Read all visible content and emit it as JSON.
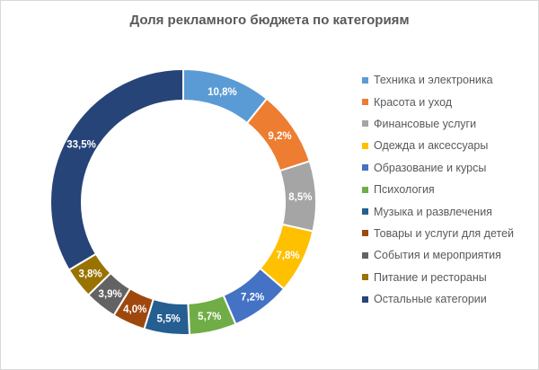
{
  "chart_data": {
    "type": "pie",
    "donut": true,
    "title": "Доля рекламного бюджета по категориям",
    "legend_position": "right",
    "categories": [
      "Техника и электроника",
      "Красота и уход",
      "Финансовые услуги",
      "Одежда и аксессуары",
      "Образование и курсы",
      "Психология",
      "Музыка и развлечения",
      "Товары и услуги для детей",
      "События и мероприятия",
      "Питание и рестораны",
      "Остальные категории"
    ],
    "values": [
      10.8,
      9.2,
      8.5,
      7.8,
      7.2,
      5.7,
      5.5,
      4.0,
      3.9,
      3.8,
      33.5
    ],
    "data_labels": [
      "10,8%",
      "9,2%",
      "8,5%",
      "7,8%",
      "7,2%",
      "5,7%",
      "5,5%",
      "4,0%",
      "3,9%",
      "3,8%",
      "33,5%"
    ],
    "colors": [
      "#5B9BD5",
      "#ED7D31",
      "#A5A5A5",
      "#FFC000",
      "#4472C4",
      "#70AD47",
      "#255E91",
      "#9E480E",
      "#636363",
      "#997300",
      "#264478"
    ]
  }
}
